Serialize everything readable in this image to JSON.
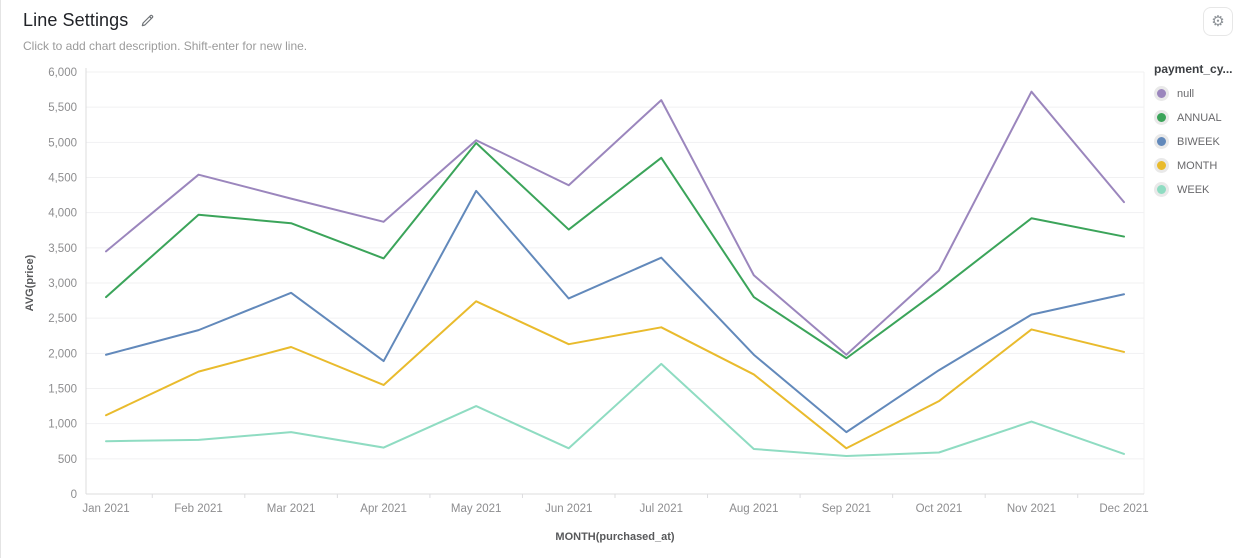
{
  "header": {
    "title": "Line Settings",
    "description_placeholder": "Click to add chart description. Shift-enter for new line."
  },
  "icons": {
    "settings_gear": "⚙",
    "edit_pencil": "pencil-icon"
  },
  "legend": {
    "title": "payment_cy...",
    "items": [
      {
        "label": "null",
        "color": "#9b86bd"
      },
      {
        "label": "ANNUAL",
        "color": "#3ba45a"
      },
      {
        "label": "BIWEEK",
        "color": "#6289bb"
      },
      {
        "label": "MONTH",
        "color": "#e9bb2d"
      },
      {
        "label": "WEEK",
        "color": "#8fdcc2"
      }
    ]
  },
  "chart_data": {
    "type": "line",
    "title": "Line Settings",
    "xlabel": "MONTH(purchased_at)",
    "ylabel": "AVG(price)",
    "ylim": [
      0,
      6000
    ],
    "ytick_step": 500,
    "grid": true,
    "legend_position": "right",
    "x": [
      "Jan 2021",
      "Feb 2021",
      "Mar 2021",
      "Apr 2021",
      "May 2021",
      "Jun 2021",
      "Jul 2021",
      "Aug 2021",
      "Sep 2021",
      "Oct 2021",
      "Nov 2021",
      "Dec 2021"
    ],
    "series": [
      {
        "name": "null",
        "color": "#9b86bd",
        "values": [
          3450,
          4540,
          4200,
          3870,
          5030,
          4390,
          5600,
          3110,
          1980,
          3180,
          5720,
          4150
        ]
      },
      {
        "name": "ANNUAL",
        "color": "#3ba45a",
        "values": [
          2800,
          3970,
          3850,
          3350,
          4990,
          3760,
          4780,
          2800,
          1930,
          2900,
          3920,
          3660
        ]
      },
      {
        "name": "BIWEEK",
        "color": "#6289bb",
        "values": [
          1980,
          2330,
          2860,
          1890,
          4310,
          2780,
          3360,
          1980,
          880,
          1760,
          2550,
          2840
        ]
      },
      {
        "name": "MONTH",
        "color": "#e9bb2d",
        "values": [
          1120,
          1740,
          2090,
          1550,
          2740,
          2130,
          2370,
          1700,
          650,
          1320,
          2340,
          2020
        ]
      },
      {
        "name": "WEEK",
        "color": "#8fdcc2",
        "values": [
          750,
          770,
          880,
          660,
          1250,
          650,
          1850,
          640,
          540,
          590,
          1030,
          570
        ]
      }
    ]
  }
}
